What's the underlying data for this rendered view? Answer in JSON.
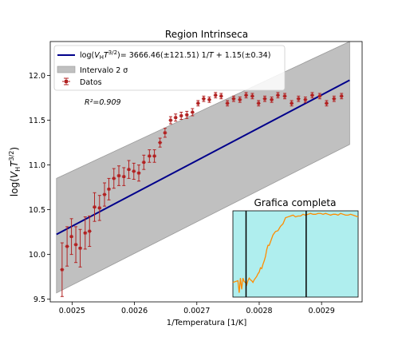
{
  "chart_data": [
    {
      "type": "scatter",
      "title": "Region Intrinseca",
      "xlabel": "1/Temperatura [1/K]",
      "ylabel_parts": {
        "pre": "log(",
        "V": "V",
        "Hsub": "H",
        "T": "T",
        "sup": "3/2",
        "post": ")"
      },
      "xlim": [
        0.002465,
        0.002965
      ],
      "ylim": [
        9.47,
        12.38
      ],
      "xticks": [
        0.0025,
        0.0026,
        0.0027,
        0.0028,
        0.0029
      ],
      "xtick_labels": [
        "0.0025",
        "0.0026",
        "0.0027",
        "0.0028",
        "0.0029"
      ],
      "yticks": [
        9.5,
        10.0,
        10.5,
        11.0,
        11.5,
        12.0
      ],
      "ytick_labels": [
        "9.5",
        "10.0",
        "10.5",
        "11.0",
        "11.5",
        "12.0"
      ],
      "grid": false,
      "legend_position": "top-left",
      "legend": {
        "fit_label": {
          "pre": "log(",
          "V": "V",
          "Hsub": "H",
          "T": "T",
          "sup": "3/2",
          "mid": ")= 3666.46(±121.51) 1/",
          "Tvar": "T",
          "post": " + 1.15(±0.34)"
        },
        "band_label": "Intervalo 2 σ",
        "data_label": "Datos"
      },
      "r2_text": "R²=0.909",
      "fit": {
        "slope": 3666.46,
        "intercept": 1.15,
        "x_range": [
          0.002475,
          0.002945
        ],
        "color": "#00008b"
      },
      "band": {
        "lower": [
          [
            0.002475,
            9.57
          ],
          [
            0.002945,
            11.23
          ]
        ],
        "upper": [
          [
            0.002475,
            10.85
          ],
          [
            0.002945,
            12.38
          ]
        ],
        "color": "#c0c0c0",
        "edge": "#9a9a9a"
      },
      "series": [
        {
          "name": "Datos",
          "color": "#b22222",
          "x": [
            0.002484,
            0.002492,
            0.002499,
            0.002506,
            0.002513,
            0.002521,
            0.002528,
            0.002536,
            0.002544,
            0.002552,
            0.002559,
            0.002567,
            0.002575,
            0.002583,
            0.002591,
            0.002599,
            0.002607,
            0.002615,
            0.002624,
            0.002632,
            0.002641,
            0.002649,
            0.002658,
            0.002666,
            0.002675,
            0.002684,
            0.002693,
            0.002702,
            0.002711,
            0.00272,
            0.00273,
            0.002739,
            0.002749,
            0.002759,
            0.002769,
            0.002779,
            0.002789,
            0.002799,
            0.002809,
            0.00282,
            0.00283,
            0.002841,
            0.002852,
            0.002863,
            0.002874,
            0.002885,
            0.002897,
            0.002908,
            0.00292,
            0.002932
          ],
          "y": [
            9.83,
            10.09,
            10.2,
            10.11,
            10.07,
            10.24,
            10.26,
            10.53,
            10.52,
            10.67,
            10.73,
            10.85,
            10.88,
            10.87,
            10.95,
            10.93,
            10.91,
            11.03,
            11.1,
            11.1,
            11.25,
            11.36,
            11.5,
            11.53,
            11.55,
            11.56,
            11.59,
            11.69,
            11.74,
            11.73,
            11.78,
            11.77,
            11.69,
            11.74,
            11.73,
            11.78,
            11.77,
            11.69,
            11.74,
            11.73,
            11.78,
            11.77,
            11.69,
            11.74,
            11.73,
            11.78,
            11.77,
            11.69,
            11.74,
            11.77
          ],
          "yerr": [
            0.3,
            0.22,
            0.2,
            0.2,
            0.21,
            0.18,
            0.17,
            0.16,
            0.14,
            0.13,
            0.12,
            0.11,
            0.11,
            0.1,
            0.1,
            0.09,
            0.09,
            0.08,
            0.07,
            0.07,
            0.05,
            0.05,
            0.04,
            0.04,
            0.04,
            0.04,
            0.04,
            0.03,
            0.03,
            0.03,
            0.03,
            0.03,
            0.03,
            0.03,
            0.03,
            0.03,
            0.03,
            0.03,
            0.03,
            0.03,
            0.03,
            0.03,
            0.03,
            0.03,
            0.03,
            0.03,
            0.03,
            0.03,
            0.03,
            0.03
          ]
        }
      ]
    },
    {
      "type": "line",
      "title": "Grafica completa",
      "xlim": [
        0,
        100
      ],
      "ylim": [
        0,
        1
      ],
      "background": "#afeeee",
      "line_color": "#ff8c00",
      "x": [
        0,
        2,
        4,
        5,
        6,
        7,
        8,
        9,
        10,
        11,
        12,
        13,
        14,
        15,
        16,
        17,
        18,
        19,
        20,
        21,
        22,
        23,
        24,
        25,
        26,
        27,
        28,
        29,
        30,
        32,
        34,
        36,
        38,
        40,
        42,
        44,
        46,
        48,
        50,
        52,
        54,
        56,
        58,
        60,
        62,
        64,
        66,
        68,
        70,
        72,
        74,
        76,
        78,
        80,
        82,
        84,
        86,
        88,
        90,
        92,
        94,
        96,
        98,
        100
      ],
      "y": [
        0.17,
        0.18,
        0.19,
        0.05,
        0.22,
        0.09,
        0.22,
        0.18,
        0.17,
        0.14,
        0.19,
        0.22,
        0.2,
        0.19,
        0.17,
        0.2,
        0.22,
        0.24,
        0.27,
        0.29,
        0.34,
        0.33,
        0.38,
        0.42,
        0.47,
        0.55,
        0.6,
        0.6,
        0.64,
        0.72,
        0.76,
        0.77,
        0.82,
        0.85,
        0.92,
        0.93,
        0.94,
        0.95,
        0.93,
        0.94,
        0.94,
        0.96,
        0.95,
        0.96,
        0.97,
        0.96,
        0.96,
        0.97,
        0.97,
        0.96,
        0.97,
        0.96,
        0.95,
        0.96,
        0.96,
        0.95,
        0.97,
        0.96,
        0.95,
        0.95,
        0.96,
        0.95,
        0.94,
        0.93
      ],
      "vlines_x": [
        10.5,
        58.5
      ]
    }
  ]
}
